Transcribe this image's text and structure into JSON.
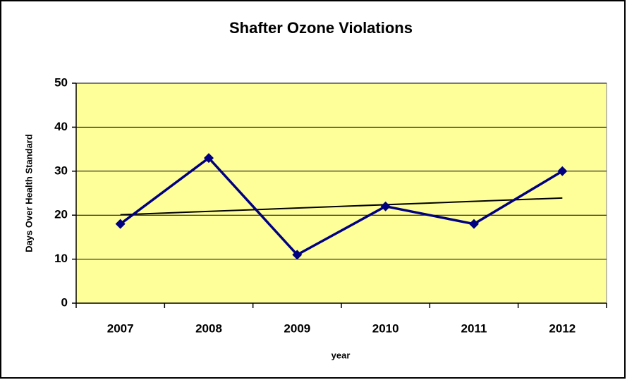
{
  "chart_data": {
    "type": "line",
    "title": "Shafter Ozone Violations",
    "x_label": "year",
    "y_label": "Days Over Health Standard",
    "categories": [
      "2007",
      "2008",
      "2009",
      "2010",
      "2011",
      "2012"
    ],
    "series": [
      {
        "color": "#000080",
        "values": [
          18,
          33,
          11,
          22,
          18,
          30
        ]
      }
    ],
    "trendline": {
      "color": "#000000",
      "values": [
        20.1,
        23.9
      ]
    },
    "ylim": [
      0,
      50
    ],
    "yticks": [
      0,
      10,
      20,
      30,
      40,
      50
    ],
    "grid": true,
    "plot_background": "#ffff99"
  }
}
